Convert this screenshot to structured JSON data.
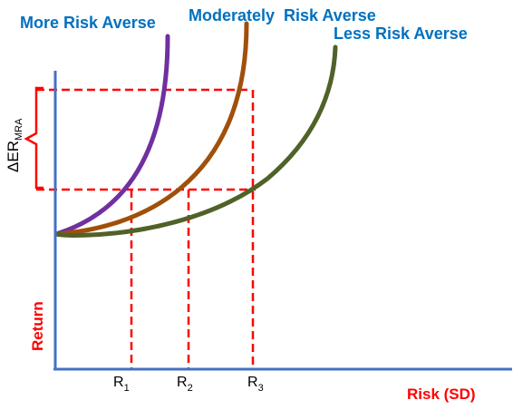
{
  "chart_data": {
    "type": "line",
    "series": [
      {
        "name": "More Risk Averse",
        "color": "#7030A0"
      },
      {
        "name": "Moderately  Risk Averse",
        "color": "#A0500A"
      },
      {
        "name": "Less Risk Averse",
        "color": "#4F6228"
      }
    ],
    "label_color": "#0070C0",
    "axis_color": "#4472C4",
    "guide_color": "#FF0000",
    "xlabel": "Risk (SD)",
    "ylabel": "Return",
    "x_ticks": [
      {
        "main": "R",
        "sub": "1"
      },
      {
        "main": "R",
        "sub": "2"
      },
      {
        "main": "R",
        "sub": "3"
      }
    ],
    "delta": {
      "main": "ΔER",
      "sub": "MRA"
    },
    "grid": false
  }
}
